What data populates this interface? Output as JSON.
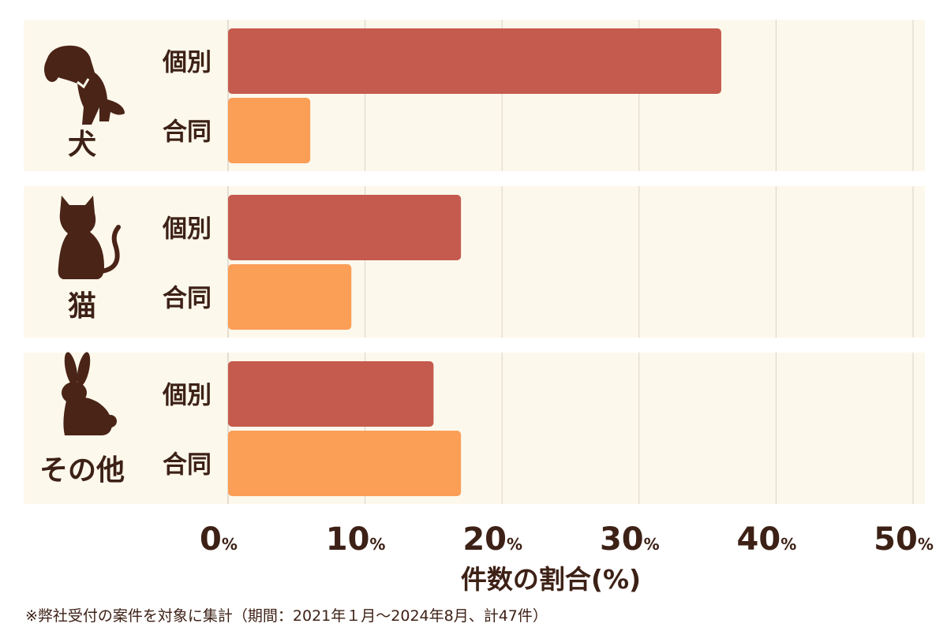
{
  "chart_data": {
    "type": "bar",
    "orientation": "horizontal",
    "groups": [
      {
        "label": "犬",
        "icon": "dog-icon"
      },
      {
        "label": "猫",
        "icon": "cat-icon"
      },
      {
        "label": "その他",
        "icon": "rabbit-icon"
      }
    ],
    "series": [
      {
        "name": "個別",
        "color": "#c55b4e",
        "values": [
          36,
          17,
          15
        ]
      },
      {
        "name": "合同",
        "color": "#fb9e56",
        "values": [
          6,
          9,
          17
        ]
      }
    ],
    "xlim": [
      0,
      50
    ],
    "xticks": [
      0,
      10,
      20,
      30,
      40,
      50
    ],
    "tick_unit": "%",
    "xlabel": "件数の割合(%)",
    "grid": true
  },
  "colors": {
    "panel_bg": "#fdf8ec",
    "grid": "#d8d3c8",
    "text": "#3d2116",
    "icon": "#4a2417"
  },
  "footnote": "※弊社受付の案件を対象に集計（期間：2021年１月〜2024年8月、計47件）"
}
